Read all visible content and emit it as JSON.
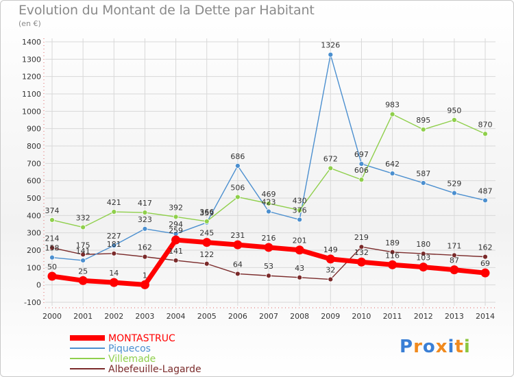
{
  "title": "Evolution du Montant de la Dette par Habitant",
  "unit": "(en €)",
  "logo": {
    "text": "Proxiti",
    "letters": [
      "P",
      "r",
      "o",
      "x",
      "i",
      "t",
      "i"
    ],
    "colors": [
      "#3a7fd5",
      "#f08a1e",
      "#3a7fd5",
      "#f08a1e",
      "#3a7fd5",
      "#f08a1e",
      "#8cc63f"
    ]
  },
  "chart_data": {
    "type": "line",
    "title": "Evolution du Montant de la Dette par Habitant",
    "ylabel": "(en €)",
    "xlabel": "",
    "ylim": [
      -100,
      1400
    ],
    "yticks": [
      -100,
      0,
      100,
      200,
      300,
      400,
      500,
      600,
      700,
      800,
      900,
      1000,
      1100,
      1200,
      1300,
      1400
    ],
    "categories": [
      "2000",
      "2001",
      "2002",
      "2003",
      "2004",
      "2005",
      "2006",
      "2007",
      "2008",
      "2009",
      "2010",
      "2011",
      "2012",
      "2013",
      "2014"
    ],
    "series": [
      {
        "name": "MONTASTRUC",
        "color": "#ff0000",
        "bold": true,
        "values": [
          50,
          25,
          14,
          1,
          259,
          245,
          231,
          216,
          201,
          149,
          132,
          116,
          103,
          87,
          69
        ]
      },
      {
        "name": "Piquecos",
        "color": "#4b8fcf",
        "values": [
          158,
          141,
          227,
          323,
          294,
          359,
          686,
          423,
          376,
          1326,
          697,
          642,
          587,
          529,
          487
        ]
      },
      {
        "name": "Villemade",
        "color": "#8fcf4b",
        "values": [
          374,
          332,
          421,
          417,
          392,
          366,
          506,
          469,
          430,
          672,
          606,
          983,
          895,
          950,
          870
        ]
      },
      {
        "name": "Albefeuille-Lagarde",
        "color": "#7a2a2a",
        "values": [
          214,
          175,
          181,
          162,
          141,
          122,
          64,
          53,
          43,
          32,
          219,
          189,
          180,
          171,
          162
        ]
      }
    ]
  }
}
